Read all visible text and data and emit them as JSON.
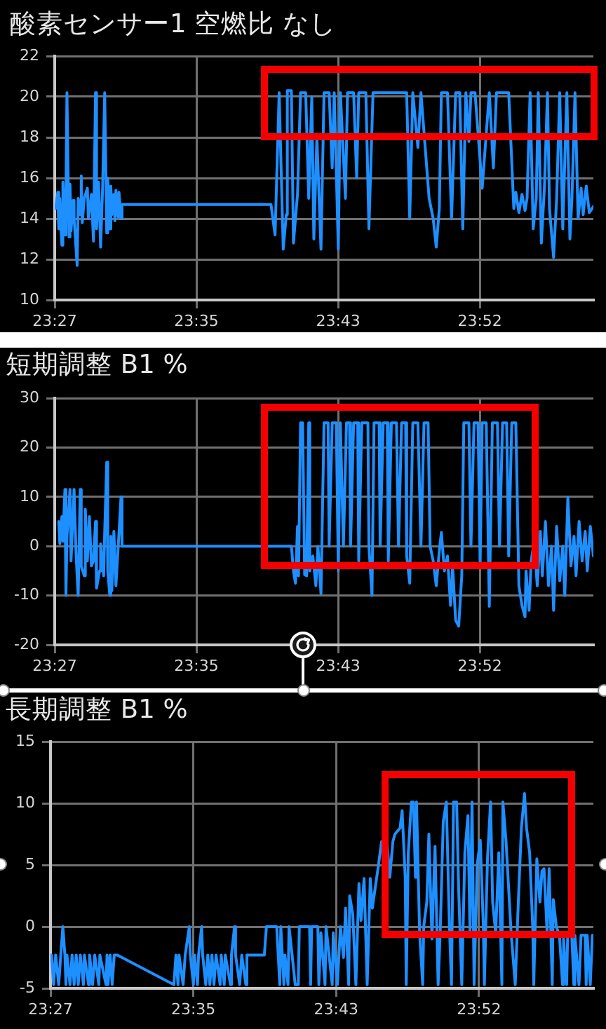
{
  "chart_data": [
    {
      "type": "line",
      "title": "酸素センサー1 空燃比 なし",
      "color": "#1e8fff",
      "grid": true,
      "marker": "none",
      "xlim": [
        23.445,
        23.973
      ],
      "xticks": [
        {
          "value": 23.445,
          "label": "23:27"
        },
        {
          "value": 23.5839,
          "label": "23:35"
        },
        {
          "value": 23.7228,
          "label": "23:43"
        },
        {
          "value": 23.8617,
          "label": "23:52"
        }
      ],
      "ylim": [
        10,
        22
      ],
      "yticks": [
        10,
        12,
        14,
        16,
        18,
        20,
        22
      ],
      "x": [
        23.446,
        23.448,
        23.449,
        23.45,
        23.452,
        23.453,
        23.455,
        23.456,
        23.457,
        23.459,
        23.46,
        23.461,
        23.463,
        23.464,
        23.467,
        23.468,
        23.47,
        23.471,
        23.472,
        23.474,
        23.477,
        23.478,
        23.481,
        23.483,
        23.485,
        23.486,
        23.488,
        23.489,
        23.49,
        23.492,
        23.494,
        23.496,
        23.497,
        23.499,
        23.5,
        23.501,
        23.503,
        23.504,
        23.505,
        23.507,
        23.508,
        23.51,
        23.511,
        23.657,
        23.661,
        23.665,
        23.669,
        23.672,
        23.673,
        23.677,
        23.679,
        23.683,
        23.686,
        23.691,
        23.694,
        23.697,
        23.699,
        23.702,
        23.706,
        23.709,
        23.714,
        23.717,
        23.719,
        23.723,
        23.725,
        23.73,
        23.732,
        23.738,
        23.741,
        23.743,
        23.75,
        23.753,
        23.757,
        23.79,
        23.793,
        23.796,
        23.801,
        23.804,
        23.812,
        23.816,
        23.819,
        23.822,
        23.824,
        23.83,
        23.834,
        23.838,
        23.842,
        23.845,
        23.848,
        23.851,
        23.853,
        23.857,
        23.864,
        23.871,
        23.875,
        23.878,
        23.89,
        23.895,
        23.897,
        23.9,
        23.903,
        23.906,
        23.908,
        23.911,
        23.914,
        23.917,
        23.919,
        23.922,
        23.925,
        23.928,
        23.93,
        23.934,
        23.937,
        23.94,
        23.943,
        23.947,
        23.95,
        23.952,
        23.955,
        23.958,
        23.961,
        23.963,
        23.966,
        23.969,
        23.973
      ],
      "values": [
        14.5,
        15.3,
        13.5,
        15.0,
        12.7,
        15.8,
        13.2,
        15.2,
        20.2,
        13.1,
        15.7,
        13.4,
        14.9,
        14.0,
        11.7,
        15.0,
        14.2,
        16.1,
        13.8,
        15.0,
        15.5,
        14.0,
        15.2,
        12.9,
        20.2,
        13.5,
        15.8,
        14.2,
        12.6,
        15.6,
        20.2,
        13.3,
        16.0,
        13.5,
        15.6,
        14.2,
        15.2,
        13.9,
        15.4,
        14.1,
        15.3,
        14.0,
        14.7,
        14.7,
        13.2,
        20.2,
        12.5,
        14.2,
        20.3,
        20.3,
        12.8,
        15.2,
        20.2,
        20.2,
        15.0,
        20.0,
        13.0,
        18.0,
        12.5,
        20.2,
        20.2,
        16.5,
        20.2,
        12.5,
        20.2,
        15.0,
        20.2,
        20.2,
        16.0,
        20.2,
        20.2,
        13.5,
        20.2,
        20.2,
        14.0,
        20.2,
        17.5,
        20.2,
        15.0,
        14.0,
        12.6,
        14.5,
        20.2,
        20.2,
        14.0,
        20.2,
        20.2,
        13.5,
        20.2,
        17.8,
        20.2,
        20.2,
        15.5,
        20.2,
        16.5,
        20.2,
        20.2,
        14.5,
        15.3,
        14.3,
        15.2,
        14.4,
        15.0,
        20.2,
        13.5,
        15.0,
        20.2,
        12.8,
        15.5,
        20.2,
        14.5,
        12.1,
        15.0,
        20.2,
        13.5,
        20.2,
        13.0,
        15.0,
        20.2,
        14.0,
        15.5,
        14.2,
        15.6,
        14.3,
        14.6
      ]
    },
    {
      "type": "line",
      "title": "短期調整 B1 %",
      "color": "#1e8fff",
      "grid": true,
      "marker": "none",
      "xlim": [
        23.445,
        23.973
      ],
      "xticks": [
        {
          "value": 23.445,
          "label": "23:27"
        },
        {
          "value": 23.5839,
          "label": "23:35"
        },
        {
          "value": 23.7228,
          "label": "23:43"
        },
        {
          "value": 23.8617,
          "label": "23:52"
        }
      ],
      "ylim": [
        -20,
        30
      ],
      "yticks": [
        -20,
        -10,
        0,
        10,
        20,
        30
      ],
      "x": [
        23.449,
        23.45,
        23.452,
        23.453,
        23.455,
        23.456,
        23.457,
        23.46,
        23.461,
        23.464,
        23.466,
        23.468,
        23.47,
        23.471,
        23.474,
        23.475,
        23.477,
        23.479,
        23.481,
        23.483,
        23.485,
        23.486,
        23.489,
        23.49,
        23.493,
        23.494,
        23.496,
        23.497,
        23.499,
        23.5,
        23.501,
        23.503,
        23.505,
        23.507,
        23.51,
        23.511,
        23.677,
        23.679,
        23.681,
        23.683,
        23.684,
        23.686,
        23.688,
        23.69,
        23.692,
        23.694,
        23.695,
        23.698,
        23.701,
        23.703,
        23.706,
        23.709,
        23.713,
        23.714,
        23.717,
        23.721,
        23.723,
        23.725,
        23.728,
        23.731,
        23.734,
        23.735,
        23.738,
        23.742,
        23.743,
        23.746,
        23.752,
        23.753,
        23.756,
        23.758,
        23.763,
        23.764,
        23.767,
        23.771,
        23.772,
        23.775,
        23.78,
        23.782,
        23.785,
        23.789,
        23.79,
        23.793,
        23.796,
        23.801,
        23.804,
        23.807,
        23.811,
        23.813,
        23.816,
        23.819,
        23.822,
        23.824,
        23.827,
        23.83,
        23.833,
        23.835,
        23.838,
        23.841,
        23.844,
        23.846,
        23.851,
        23.853,
        23.856,
        23.86,
        23.862,
        23.864,
        23.868,
        23.871,
        23.874,
        23.879,
        23.881,
        23.884,
        23.888,
        23.89,
        23.893,
        23.897,
        23.9,
        23.903,
        23.906,
        23.907,
        23.91,
        23.912,
        23.915,
        23.918,
        23.921,
        23.923,
        23.926,
        23.929,
        23.932,
        23.934,
        23.937,
        23.94,
        23.943,
        23.945,
        23.948,
        23.951,
        23.954,
        23.956,
        23.959,
        23.962,
        23.965,
        23.967,
        23.97,
        23.973
      ],
      "values": [
        5.0,
        0.5,
        6.0,
        1.0,
        11.5,
        -10.0,
        2.0,
        11.5,
        -3.0,
        11.5,
        -2.0,
        -10.0,
        11.5,
        -4.0,
        -6.0,
        7.5,
        -3.0,
        6.0,
        -4.0,
        -3.0,
        5.0,
        -8.5,
        -5.0,
        0.5,
        -6.0,
        3.0,
        17.0,
        -5.0,
        -10.0,
        2.0,
        -9.0,
        3.0,
        -8.0,
        -1.0,
        10.0,
        0.0,
        0.0,
        -5.0,
        -7.5,
        4.0,
        -6.0,
        25.0,
        25.0,
        -5.8,
        -6.0,
        25.0,
        -5.0,
        -2.0,
        -8.0,
        0.0,
        -9.6,
        25.0,
        25.0,
        0.0,
        25.0,
        25.0,
        -5.0,
        25.0,
        0.0,
        25.0,
        25.0,
        0.0,
        25.0,
        25.0,
        -3.0,
        25.0,
        25.0,
        0.0,
        -10.0,
        25.0,
        25.0,
        0.0,
        25.0,
        25.0,
        -3.0,
        25.0,
        25.0,
        0.0,
        25.0,
        25.0,
        -2.0,
        -7.5,
        25.0,
        25.0,
        0.0,
        25.0,
        25.0,
        0.0,
        -3.0,
        -8.0,
        -1.0,
        2.8,
        -5.0,
        -2.0,
        -12.0,
        -4.0,
        -15.0,
        -16.2,
        -6.0,
        25.0,
        25.0,
        0.0,
        25.0,
        25.0,
        -4.0,
        25.0,
        25.0,
        -12.2,
        25.0,
        25.0,
        0.0,
        25.0,
        25.0,
        -2.0,
        25.0,
        25.0,
        -8.0,
        -12.0,
        -14.3,
        -5.0,
        -13.0,
        -3.0,
        1.0,
        -8.0,
        3.0,
        -6.0,
        5.0,
        -8.0,
        0.0,
        -13.0,
        4.0,
        -7.0,
        0.0,
        -10.0,
        9.9,
        -4.0,
        2.0,
        -6.0,
        5.0,
        -3.0,
        3.0,
        -5.0,
        4.0,
        -2.0
      ]
    },
    {
      "type": "line",
      "title": "長期調整 B1 %",
      "color": "#1e8fff",
      "grid": true,
      "marker": "none",
      "xlim": [
        23.445,
        23.973
      ],
      "xticks": [
        {
          "value": 23.445,
          "label": "23:27"
        },
        {
          "value": 23.5839,
          "label": "23:35"
        },
        {
          "value": 23.7228,
          "label": "23:43"
        },
        {
          "value": 23.8617,
          "label": "23:52"
        }
      ],
      "ylim": [
        -5,
        15
      ],
      "yticks": [
        -5,
        0,
        5,
        10,
        15
      ],
      "x": [
        23.446,
        23.448,
        23.45,
        23.453,
        23.455,
        23.457,
        23.459,
        23.46,
        23.461,
        23.464,
        23.466,
        23.468,
        23.47,
        23.472,
        23.474,
        23.477,
        23.478,
        23.482,
        23.483,
        23.486,
        23.488,
        23.492,
        23.493,
        23.499,
        23.5,
        23.501,
        23.503,
        23.505,
        23.507,
        23.51,
        23.565,
        23.567,
        23.569,
        23.57,
        23.574,
        23.576,
        23.58,
        23.581,
        23.584,
        23.585,
        23.588,
        23.589,
        23.592,
        23.593,
        23.596,
        23.598,
        23.6,
        23.602,
        23.604,
        23.606,
        23.61,
        23.611,
        23.614,
        23.615,
        23.62,
        23.621,
        23.624,
        23.625,
        23.629,
        23.631,
        23.635,
        23.636,
        23.653,
        23.655,
        23.665,
        23.668,
        23.669,
        23.672,
        23.673,
        23.676,
        23.677,
        23.68,
        23.683,
        23.686,
        23.687,
        23.697,
        23.698,
        23.699,
        23.705,
        23.706,
        23.708,
        23.712,
        23.713,
        23.719,
        23.72,
        23.724,
        23.727,
        23.73,
        23.732,
        23.735,
        23.736,
        23.739,
        23.742,
        23.745,
        23.747,
        23.75,
        23.753,
        23.756,
        23.758,
        23.764,
        23.767,
        23.769,
        23.772,
        23.775,
        23.778,
        23.78,
        23.785,
        23.787,
        23.79,
        23.791,
        23.793,
        23.796,
        23.798,
        23.8,
        23.801,
        23.804,
        23.807,
        23.808,
        23.811,
        23.813,
        23.816,
        23.819,
        23.822,
        23.824,
        23.827,
        23.83,
        23.833,
        23.835,
        23.837,
        23.84,
        23.842,
        23.845,
        23.848,
        23.851,
        23.853,
        23.855,
        23.857,
        23.86,
        23.863,
        23.866,
        23.867,
        23.87,
        23.873,
        23.875,
        23.878,
        23.881,
        23.884,
        23.885,
        23.888,
        23.89,
        23.893,
        23.897,
        23.9,
        23.903,
        23.906,
        23.908,
        23.911,
        23.914,
        23.915,
        23.917,
        23.918,
        23.921,
        23.923,
        23.925,
        23.928,
        23.93,
        23.933,
        23.934,
        23.937,
        23.94,
        23.943,
        23.944,
        23.947,
        23.948,
        23.952,
        23.954,
        23.955,
        23.959,
        23.961,
        23.965,
        23.966,
        23.967,
        23.97,
        23.972,
        23.973
      ],
      "values": [
        -2.3,
        -4.7,
        -2.3,
        -4.7,
        -2.3,
        0.0,
        -2.3,
        -4.7,
        -2.3,
        -4.7,
        -2.3,
        -4.7,
        -2.3,
        -4.7,
        -2.3,
        -4.7,
        -2.3,
        -4.7,
        -2.3,
        -4.7,
        -2.3,
        -4.7,
        -2.3,
        -4.7,
        -2.3,
        -4.7,
        -2.3,
        -4.7,
        -2.3,
        -2.3,
        -4.7,
        -2.3,
        -4.7,
        -2.3,
        -4.7,
        -2.3,
        0.0,
        -2.3,
        -4.7,
        -2.3,
        -4.7,
        -2.3,
        0.0,
        -2.3,
        -4.7,
        -2.3,
        -4.7,
        -2.3,
        -4.7,
        -2.3,
        -4.7,
        -2.3,
        -4.7,
        -2.3,
        -4.7,
        -2.3,
        0.0,
        -2.3,
        -4.7,
        -2.3,
        -4.7,
        -2.3,
        -2.3,
        0.0,
        0.0,
        -4.7,
        0.0,
        -4.7,
        -2.3,
        -4.7,
        0.0,
        -2.3,
        -4.7,
        -4.7,
        0.0,
        0.0,
        -4.7,
        0.0,
        0.0,
        -4.7,
        -0.5,
        -4.7,
        0.0,
        -4.7,
        -0.5,
        -4.7,
        0.0,
        -2.5,
        1.5,
        -4.7,
        2.5,
        1.0,
        -4.7,
        3.5,
        0.5,
        3.9,
        -4.7,
        3.9,
        1.5,
        5.0,
        6.9,
        6.5,
        7.2,
        4.0,
        6.9,
        7.5,
        8.0,
        9.4,
        4.0,
        -4.7,
        6.0,
        10.1,
        10.1,
        4.0,
        10.1,
        -0.5,
        -4.7,
        0.0,
        2.0,
        7.5,
        -1.0,
        6.5,
        -4.7,
        -0.5,
        8.5,
        10.1,
        0.0,
        -4.7,
        10.1,
        10.1,
        3.0,
        -4.7,
        6.0,
        9.0,
        -0.5,
        10.1,
        -4.7,
        5.0,
        7.0,
        0.0,
        -4.7,
        5.5,
        10.1,
        2.0,
        -0.5,
        6.0,
        -4.7,
        10.1,
        7.0,
        4.0,
        -0.5,
        -4.7,
        2.0,
        8.0,
        10.8,
        8.0,
        6.0,
        0.0,
        -4.7,
        2.0,
        5.5,
        2.0,
        4.5,
        4.7,
        -0.5,
        4.7,
        -4.7,
        2.2,
        0.0,
        -0.7,
        -4.7,
        -1.0,
        -4.7,
        -0.7,
        -0.7,
        -4.7,
        -0.7,
        -4.7,
        -0.7,
        -0.7,
        -4.7,
        -0.7,
        -4.7,
        -0.7,
        -0.7
      ]
    }
  ]
}
